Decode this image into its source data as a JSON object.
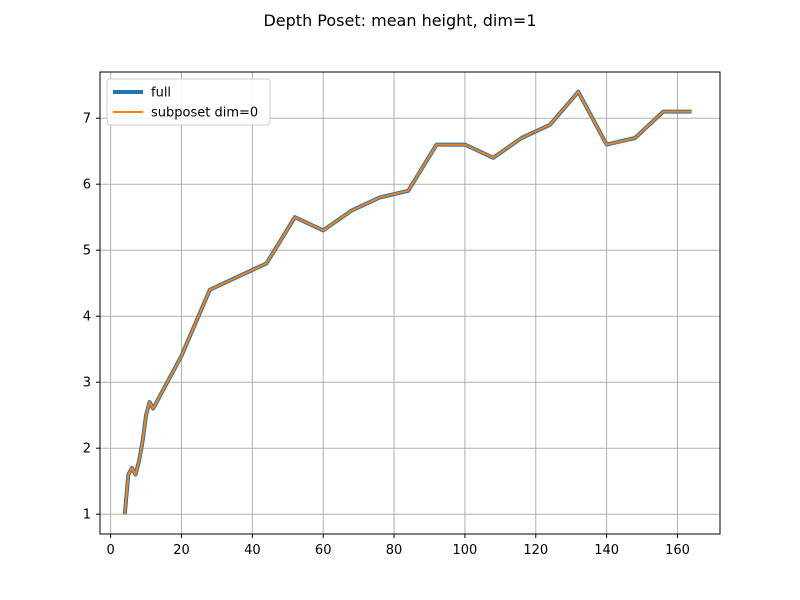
{
  "chart_data": {
    "type": "line",
    "title": "Depth Poset: mean height, dim=1",
    "xlabel": "",
    "ylabel": "",
    "xlim": [
      -3.0,
      172.0
    ],
    "ylim": [
      0.7,
      7.7
    ],
    "xticks": [
      0,
      20,
      40,
      60,
      80,
      100,
      120,
      140,
      160
    ],
    "yticks": [
      1,
      2,
      3,
      4,
      5,
      6,
      7
    ],
    "grid": true,
    "legend_position": "top-left",
    "series": [
      {
        "name": "full",
        "color": "#1f77b4",
        "x": [
          4,
          5,
          6,
          7,
          8,
          9,
          10,
          11,
          12,
          20,
          28,
          36,
          44,
          52,
          60,
          68,
          76,
          84,
          92,
          100,
          108,
          116,
          124,
          132,
          140,
          148,
          156,
          164
        ],
        "y": [
          1.0,
          1.6,
          1.7,
          1.6,
          1.8,
          2.1,
          2.5,
          2.7,
          2.6,
          3.4,
          4.4,
          4.6,
          4.8,
          5.5,
          5.3,
          5.6,
          5.8,
          5.9,
          6.6,
          6.6,
          6.4,
          6.7,
          6.9,
          7.4,
          6.6,
          6.7,
          7.1,
          7.1
        ]
      },
      {
        "name": "subposet dim=0",
        "color": "#ff7f0e",
        "x": [
          4,
          5,
          6,
          7,
          8,
          9,
          10,
          11,
          12,
          20,
          28,
          36,
          44,
          52,
          60,
          68,
          76,
          84,
          92,
          100,
          108,
          116,
          124,
          132,
          140,
          148,
          156,
          164
        ],
        "y": [
          1.0,
          1.6,
          1.7,
          1.6,
          1.8,
          2.1,
          2.5,
          2.7,
          2.6,
          3.4,
          4.4,
          4.6,
          4.8,
          5.5,
          5.3,
          5.6,
          5.8,
          5.9,
          6.6,
          6.6,
          6.4,
          6.7,
          6.9,
          7.4,
          6.6,
          6.7,
          7.1,
          7.1
        ]
      }
    ]
  }
}
